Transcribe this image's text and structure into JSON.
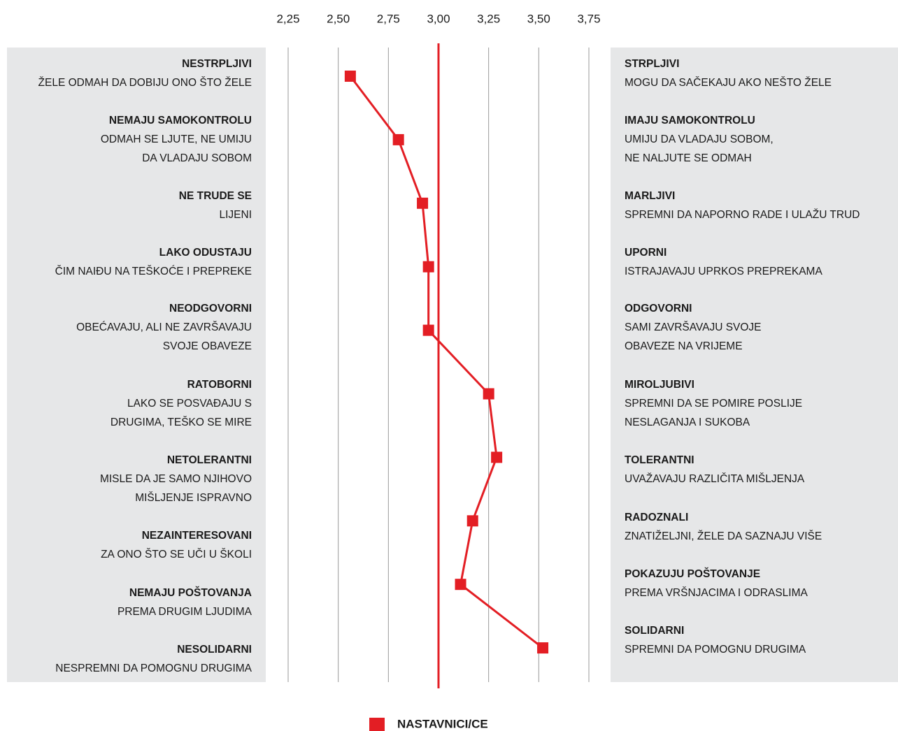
{
  "chart_data": {
    "type": "line",
    "xlim": [
      2.25,
      3.75
    ],
    "xticks": [
      {
        "value": 2.25,
        "label": "2,25"
      },
      {
        "value": 2.5,
        "label": "2,50"
      },
      {
        "value": 2.75,
        "label": "2,75"
      },
      {
        "value": 3.0,
        "label": "3,00"
      },
      {
        "value": 3.25,
        "label": "3,25"
      },
      {
        "value": 3.5,
        "label": "3,50"
      },
      {
        "value": 3.75,
        "label": "3,75"
      }
    ],
    "grid": true,
    "reference_line": {
      "value": 3.0,
      "color": "#e31e24"
    },
    "series": [
      {
        "name": "NASTAVNICI/CE",
        "color": "#e31e24",
        "values": [
          2.56,
          2.8,
          2.92,
          2.95,
          2.95,
          3.25,
          3.29,
          3.17,
          3.11,
          3.52
        ]
      }
    ],
    "left_labels": [
      {
        "title": "NESTRPLJIVI",
        "description": [
          "ŽELE ODMAH DA DOBIJU ONO ŠTO ŽELE"
        ]
      },
      {
        "title": "NEMAJU SAMOKONTROLU",
        "description": [
          "ODMAH SE LJUTE, NE UMIJU",
          "DA VLADAJU SOBOM"
        ]
      },
      {
        "title": "NE TRUDE SE",
        "description": [
          "LIJENI"
        ]
      },
      {
        "title": "LAKO ODUSTAJU",
        "description": [
          "ČIM NAIĐU NA TEŠKOĆE I PREPREKE"
        ]
      },
      {
        "title": "NEODGOVORNI",
        "description": [
          "OBEĆAVAJU, ALI NE ZAVRŠAVAJU",
          "SVOJE OBAVEZE"
        ]
      },
      {
        "title": "RATOBORNI",
        "description": [
          "LAKO SE POSVAĐAJU S",
          "DRUGIMA, TEŠKO SE MIRE"
        ]
      },
      {
        "title": "NETOLERANTNI",
        "description": [
          "MISLE DA JE SAMO NJIHOVO",
          "MIŠLJENJE ISPRAVNO"
        ]
      },
      {
        "title": "NEZAINTERESOVANI",
        "description": [
          "ZA ONO ŠTO SE UČI U ŠKOLI"
        ]
      },
      {
        "title": "NEMAJU POŠTOVANJA",
        "description": [
          "PREMA DRUGIM LJUDIMA"
        ]
      },
      {
        "title": "NESOLIDARNI",
        "description": [
          "NESPREMNI DA POMOGNU DRUGIMA"
        ]
      }
    ],
    "right_labels": [
      {
        "title": "STRPLJIVI",
        "description": [
          "MOGU DA SAČEKAJU AKO NEŠTO ŽELE"
        ]
      },
      {
        "title": "IMAJU SAMOKONTROLU",
        "description": [
          "UMIJU DA VLADAJU SOBOM,",
          "NE NALJUTE SE ODMAH"
        ]
      },
      {
        "title": "MARLJIVI",
        "description": [
          "SPREMNI DA NAPORNO RADE I ULAŽU TRUD"
        ]
      },
      {
        "title": "UPORNI",
        "description": [
          "ISTRAJAVAJU UPRKOS PREPREKAMA"
        ]
      },
      {
        "title": "ODGOVORNI",
        "description": [
          "SAMI ZAVRŠAVAJU SVOJE",
          "OBAVEZE NA VRIJEME"
        ]
      },
      {
        "title": "MIROLJUBIVI",
        "description": [
          "SPREMNI DA SE POMIRE POSLIJE",
          "NESLAGANJA I SUKOBA"
        ]
      },
      {
        "title": "TOLERANTNI",
        "description": [
          "UVAŽAVAJU RAZLIČITA MIŠLJENJA"
        ]
      },
      {
        "title": "RADOZNALI",
        "description": [
          "ZNATIŽELJNI, ŽELE DA SAZNAJU VIŠE"
        ]
      },
      {
        "title": "POKAZUJU POŠTOVANJE",
        "description": [
          "PREMA VRŠNJACIMA I ODRASLIMA"
        ]
      },
      {
        "title": "SOLIDARNI",
        "description": [
          "SPREMNI DA POMOGNU DRUGIMA"
        ]
      }
    ]
  }
}
